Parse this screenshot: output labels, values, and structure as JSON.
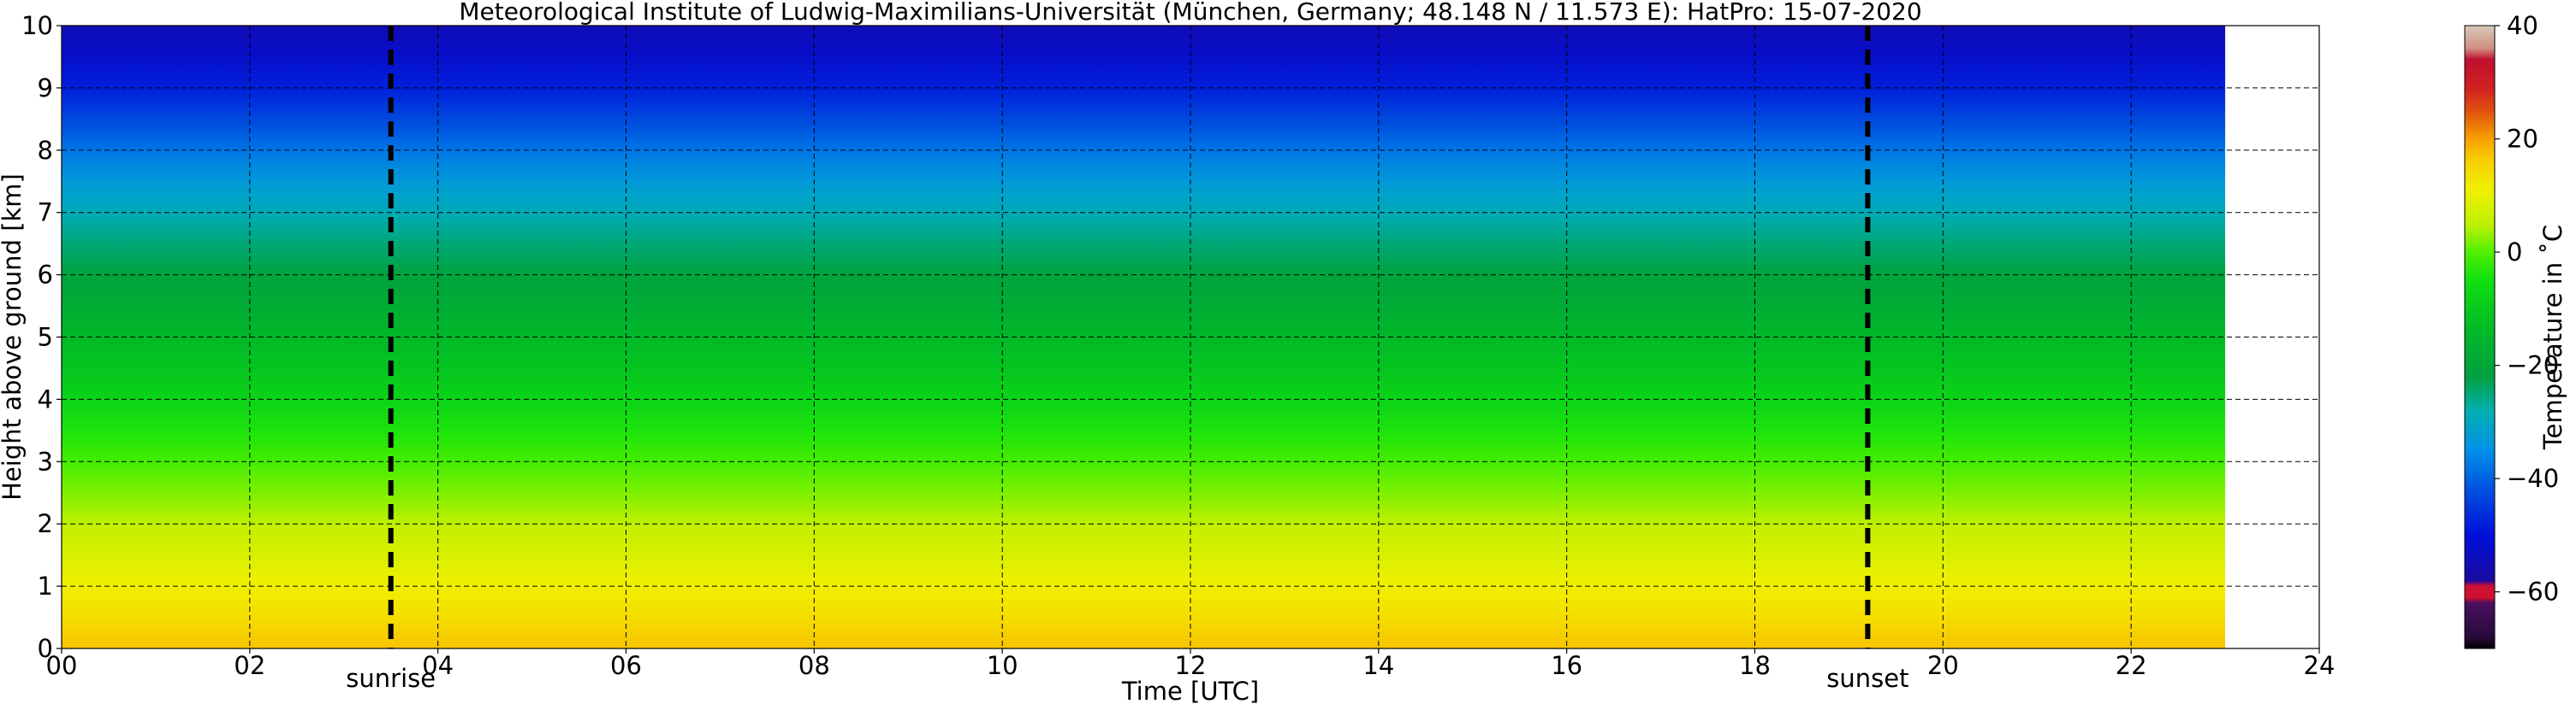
{
  "chart_data": {
    "type": "heatmap",
    "title": "Meteorological Institute of Ludwig-Maximilians-Universität (München, Germany; 48.148 N / 11.573 E):    HatPro: 15-07-2020",
    "xlabel": "Time [UTC]",
    "ylabel": "Height above ground [km]",
    "xlim": [
      0,
      24
    ],
    "ylim": [
      0,
      10
    ],
    "x_ticks": [
      0,
      2,
      4,
      6,
      8,
      10,
      12,
      14,
      16,
      18,
      20,
      22,
      24
    ],
    "x_tick_labels": [
      "00",
      "02",
      "04",
      "06",
      "08",
      "10",
      "12",
      "14",
      "16",
      "18",
      "20",
      "22",
      "24"
    ],
    "y_ticks": [
      0,
      1,
      2,
      3,
      4,
      5,
      6,
      7,
      8,
      9,
      10
    ],
    "y_tick_labels": [
      "0",
      "1",
      "2",
      "3",
      "4",
      "5",
      "6",
      "7",
      "8",
      "9",
      "10"
    ],
    "grid": true,
    "data_x_end": 23,
    "temperature_profile": {
      "heights_km": [
        0,
        0.5,
        1,
        1.5,
        2,
        2.5,
        3,
        3.5,
        4,
        4.5,
        5,
        5.5,
        6,
        6.5,
        7,
        7.5,
        8,
        8.5,
        9,
        9.5,
        10
      ],
      "temperatures_c": [
        17,
        14,
        11,
        8,
        5,
        2,
        -1,
        -4,
        -8,
        -11,
        -14,
        -18,
        -21,
        -25,
        -29,
        -33,
        -38,
        -43,
        -48,
        -52,
        -55
      ]
    },
    "annotations": [
      {
        "label": "sunrise",
        "x": 3.5
      },
      {
        "label": "sunset",
        "x": 19.2
      }
    ],
    "colorbar": {
      "label": "Temperature in ˚C",
      "min": -70,
      "max": 40,
      "ticks": [
        40,
        20,
        0,
        -20,
        -40,
        -60
      ],
      "tick_labels": [
        "40",
        "20",
        "0",
        "−20",
        "−40",
        "−60"
      ],
      "stops": [
        {
          "value": -70,
          "color": "#000000"
        },
        {
          "value": -68,
          "color": "#2a0a3a"
        },
        {
          "value": -62,
          "color": "#4a1060"
        },
        {
          "value": -61,
          "color": "#d01030"
        },
        {
          "value": -59,
          "color": "#d01030"
        },
        {
          "value": -58,
          "color": "#1a0aa0"
        },
        {
          "value": -50,
          "color": "#0010d8"
        },
        {
          "value": -42,
          "color": "#0050e0"
        },
        {
          "value": -35,
          "color": "#0090e8"
        },
        {
          "value": -28,
          "color": "#00b0b0"
        },
        {
          "value": -22,
          "color": "#00a040"
        },
        {
          "value": -14,
          "color": "#00b828"
        },
        {
          "value": -5,
          "color": "#10e010"
        },
        {
          "value": 0,
          "color": "#50f000"
        },
        {
          "value": 5,
          "color": "#c0f000"
        },
        {
          "value": 11,
          "color": "#f0f000"
        },
        {
          "value": 16,
          "color": "#f8d000"
        },
        {
          "value": 20,
          "color": "#f8a000"
        },
        {
          "value": 25,
          "color": "#e05010"
        },
        {
          "value": 29,
          "color": "#d02020"
        },
        {
          "value": 34,
          "color": "#c01030"
        },
        {
          "value": 36,
          "color": "#d09080"
        },
        {
          "value": 40,
          "color": "#d8c8b8"
        }
      ]
    }
  }
}
